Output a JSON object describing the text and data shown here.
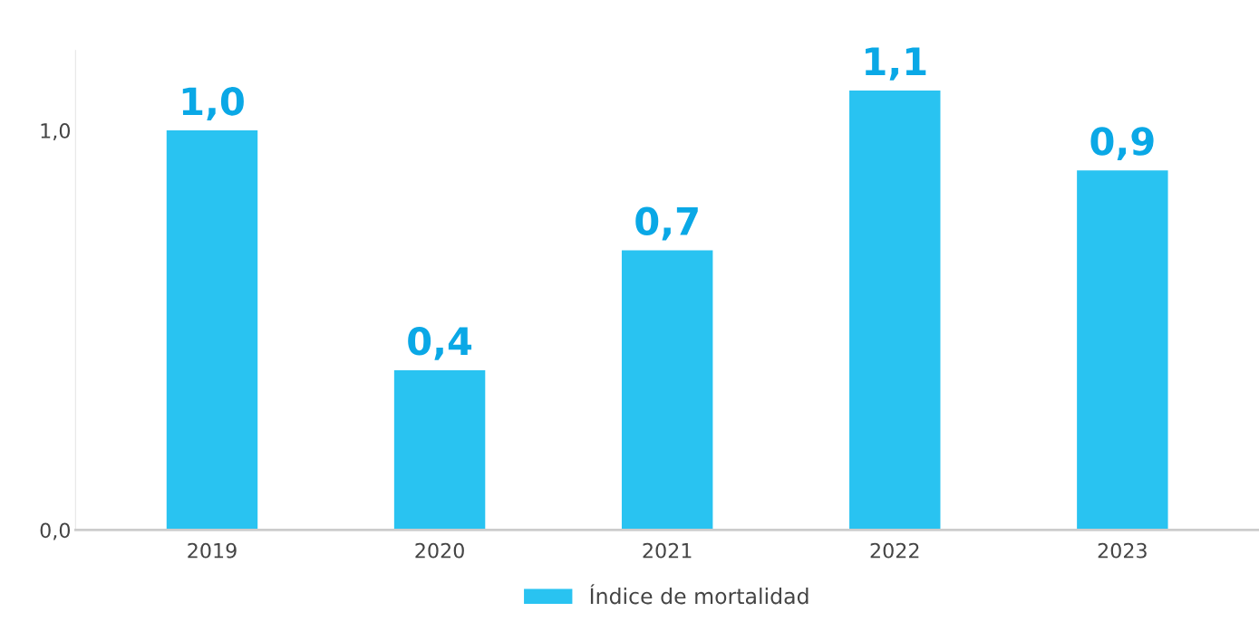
{
  "chart_data": {
    "type": "bar",
    "categories": [
      "2019",
      "2020",
      "2021",
      "2022",
      "2023"
    ],
    "series": [
      {
        "name": "Índice de mortalidad",
        "color": "#29c3f1",
        "values": [
          1.0,
          0.4,
          0.7,
          1.1,
          0.9
        ],
        "value_labels": [
          "1,0",
          "0,4",
          "0,7",
          "1,1",
          "0,9"
        ]
      }
    ],
    "ylim": [
      0,
      1.2
    ],
    "yticks": [
      {
        "value": 0,
        "label": "0,0"
      },
      {
        "value": 1,
        "label": "1,0"
      }
    ],
    "grid": false,
    "legend": "bottom"
  }
}
